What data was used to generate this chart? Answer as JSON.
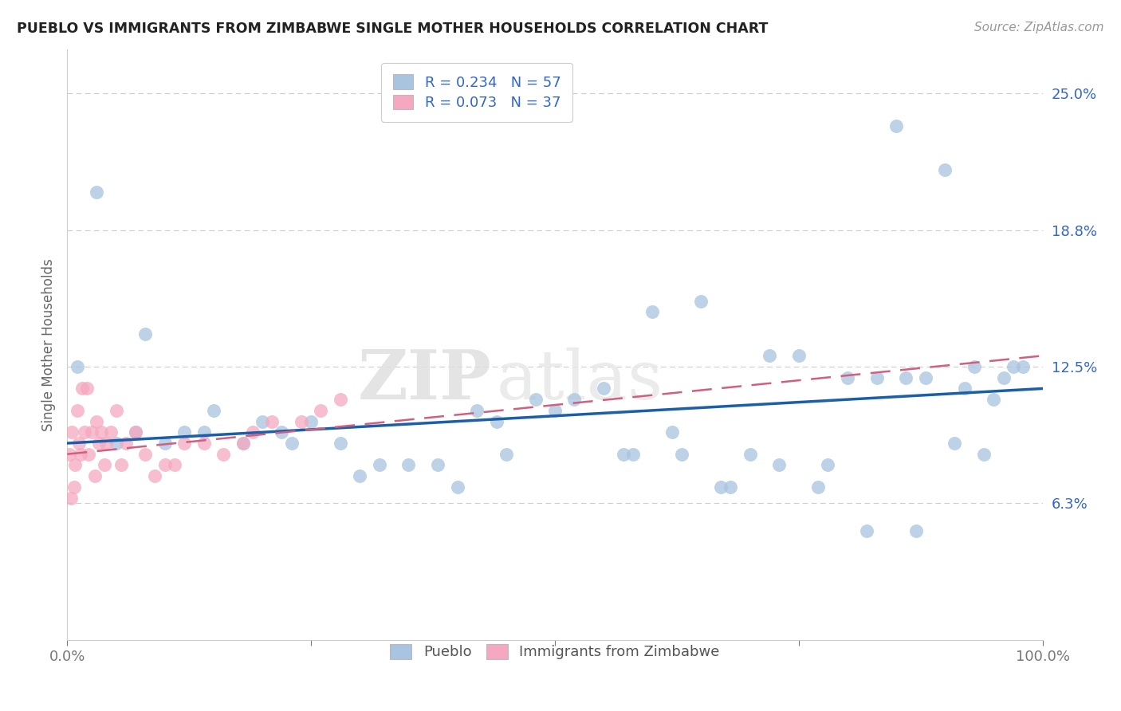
{
  "title": "PUEBLO VS IMMIGRANTS FROM ZIMBABWE SINGLE MOTHER HOUSEHOLDS CORRELATION CHART",
  "source": "Source: ZipAtlas.com",
  "ylabel": "Single Mother Households",
  "xlim": [
    0,
    100
  ],
  "ylim": [
    0,
    27
  ],
  "xtick_vals": [
    0,
    25,
    50,
    75,
    100
  ],
  "xtick_labels": [
    "0.0%",
    "",
    "",
    "",
    "100.0%"
  ],
  "ytick_vals": [
    6.25,
    12.5,
    18.75,
    25.0
  ],
  "ytick_labels": [
    "6.3%",
    "12.5%",
    "18.8%",
    "25.0%"
  ],
  "R_blue": 0.234,
  "N_blue": 57,
  "R_pink": 0.073,
  "N_pink": 37,
  "blue_color": "#a8c4e0",
  "pink_color": "#f5a8c0",
  "blue_line_color": "#1a5fa8",
  "pink_line_color": "#d06080",
  "legend_label_blue": "Pueblo",
  "legend_label_pink": "Immigrants from Zimbabwe",
  "watermark_1": "ZIP",
  "watermark_2": "atlas",
  "blue_scatter_x": [
    1,
    3,
    5,
    7,
    8,
    10,
    12,
    14,
    15,
    18,
    20,
    22,
    23,
    25,
    28,
    30,
    32,
    35,
    38,
    40,
    42,
    44,
    45,
    48,
    50,
    52,
    55,
    57,
    58,
    60,
    62,
    63,
    65,
    67,
    68,
    70,
    72,
    73,
    75,
    77,
    78,
    80,
    82,
    83,
    85,
    86,
    87,
    88,
    90,
    91,
    92,
    93,
    94,
    95,
    96,
    97,
    98
  ],
  "blue_scatter_y": [
    12.5,
    20.5,
    9.0,
    9.5,
    14.0,
    9.0,
    9.5,
    9.5,
    10.5,
    9.0,
    10.0,
    9.5,
    9.0,
    10.0,
    9.0,
    7.5,
    8.0,
    8.0,
    8.0,
    7.0,
    10.5,
    10.0,
    8.5,
    11.0,
    10.5,
    11.0,
    11.5,
    8.5,
    8.5,
    15.0,
    9.5,
    8.5,
    15.5,
    7.0,
    7.0,
    8.5,
    13.0,
    8.0,
    13.0,
    7.0,
    8.0,
    12.0,
    5.0,
    12.0,
    23.5,
    12.0,
    5.0,
    12.0,
    21.5,
    9.0,
    11.5,
    12.5,
    8.5,
    11.0,
    12.0,
    12.5,
    12.5
  ],
  "pink_scatter_x": [
    0.2,
    0.4,
    0.5,
    0.7,
    0.8,
    1.0,
    1.2,
    1.4,
    1.5,
    1.8,
    2.0,
    2.2,
    2.5,
    2.8,
    3.0,
    3.2,
    3.5,
    3.8,
    4.0,
    4.5,
    5.0,
    5.5,
    6.0,
    7.0,
    8.0,
    9.0,
    10.0,
    11.0,
    12.0,
    14.0,
    16.0,
    18.0,
    19.0,
    21.0,
    24.0,
    26.0,
    28.0
  ],
  "pink_scatter_y": [
    8.5,
    6.5,
    9.5,
    7.0,
    8.0,
    10.5,
    9.0,
    8.5,
    11.5,
    9.5,
    11.5,
    8.5,
    9.5,
    7.5,
    10.0,
    9.0,
    9.5,
    8.0,
    9.0,
    9.5,
    10.5,
    8.0,
    9.0,
    9.5,
    8.5,
    7.5,
    8.0,
    8.0,
    9.0,
    9.0,
    8.5,
    9.0,
    9.5,
    10.0,
    10.0,
    10.5,
    11.0
  ],
  "blue_trend_x0": 0,
  "blue_trend_x1": 100,
  "blue_trend_y0": 9.0,
  "blue_trend_y1": 11.5,
  "pink_trend_x0": 0,
  "pink_trend_x1": 100,
  "pink_trend_y0": 8.5,
  "pink_trend_y1": 13.0
}
